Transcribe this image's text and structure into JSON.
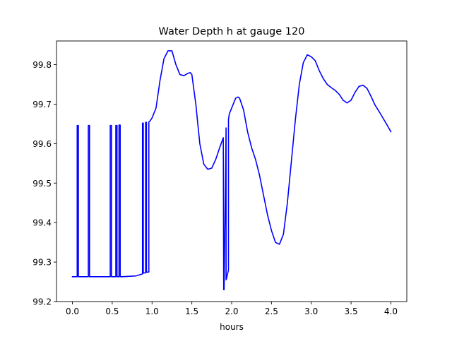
{
  "chart_data": {
    "type": "line",
    "title": "Water Depth h at gauge 120",
    "xlabel": "hours",
    "ylabel": "",
    "xlim": [
      -0.2,
      4.2
    ],
    "ylim": [
      99.2,
      99.86
    ],
    "x_ticks": [
      0.0,
      0.5,
      1.0,
      1.5,
      2.0,
      2.5,
      3.0,
      3.5,
      4.0
    ],
    "x_tick_labels": [
      "0.0",
      "0.5",
      "1.0",
      "1.5",
      "2.0",
      "2.5",
      "3.0",
      "3.5",
      "4.0"
    ],
    "y_ticks": [
      99.2,
      99.3,
      99.4,
      99.5,
      99.6,
      99.7,
      99.8
    ],
    "y_tick_labels": [
      "99.2",
      "99.3",
      "99.4",
      "99.5",
      "99.6",
      "99.7",
      "99.8"
    ],
    "grid": false,
    "legend": "none",
    "series": [
      {
        "color": "#0000ff",
        "x": [
          0.0,
          0.06,
          0.06,
          0.075,
          0.075,
          0.2,
          0.2,
          0.215,
          0.215,
          0.475,
          0.475,
          0.49,
          0.49,
          0.545,
          0.545,
          0.56,
          0.56,
          0.585,
          0.585,
          0.6,
          0.6,
          0.625,
          0.8,
          0.88,
          0.88,
          0.89,
          0.89,
          0.92,
          0.92,
          0.93,
          0.93,
          0.96,
          0.96,
          0.97,
          1.0,
          1.05,
          1.1,
          1.15,
          1.2,
          1.25,
          1.3,
          1.35,
          1.4,
          1.45,
          1.48,
          1.5,
          1.55,
          1.6,
          1.65,
          1.7,
          1.75,
          1.8,
          1.85,
          1.895,
          1.9,
          1.905,
          1.93,
          1.93,
          1.935,
          1.96,
          1.96,
          1.97,
          2.0,
          2.05,
          2.08,
          2.1,
          2.15,
          2.2,
          2.25,
          2.3,
          2.35,
          2.4,
          2.45,
          2.5,
          2.55,
          2.6,
          2.65,
          2.7,
          2.75,
          2.8,
          2.85,
          2.9,
          2.95,
          3.0,
          3.05,
          3.1,
          3.15,
          3.2,
          3.25,
          3.3,
          3.35,
          3.4,
          3.45,
          3.5,
          3.55,
          3.6,
          3.65,
          3.7,
          3.75,
          3.8,
          3.85,
          3.9,
          3.95,
          4.0
        ],
        "y": [
          99.263,
          99.263,
          99.646,
          99.646,
          99.263,
          99.263,
          99.646,
          99.646,
          99.263,
          99.263,
          99.646,
          99.646,
          99.263,
          99.263,
          99.646,
          99.646,
          99.263,
          99.263,
          99.647,
          99.647,
          99.263,
          99.263,
          99.265,
          99.27,
          99.652,
          99.652,
          99.272,
          99.273,
          99.654,
          99.654,
          99.274,
          99.275,
          99.655,
          99.656,
          99.665,
          99.69,
          99.76,
          99.815,
          99.835,
          99.835,
          99.8,
          99.775,
          99.772,
          99.778,
          99.78,
          99.775,
          99.7,
          99.6,
          99.548,
          99.535,
          99.538,
          99.56,
          99.59,
          99.615,
          99.23,
          99.23,
          99.64,
          99.255,
          99.258,
          99.28,
          99.66,
          99.675,
          99.69,
          99.715,
          99.718,
          99.715,
          99.685,
          99.63,
          99.59,
          99.56,
          99.52,
          99.47,
          99.42,
          99.38,
          99.35,
          99.345,
          99.37,
          99.45,
          99.555,
          99.66,
          99.75,
          99.805,
          99.825,
          99.82,
          99.81,
          99.785,
          99.765,
          99.75,
          99.742,
          99.735,
          99.725,
          99.71,
          99.703,
          99.71,
          99.73,
          99.745,
          99.748,
          99.74,
          99.72,
          99.698,
          99.682,
          99.665,
          99.648,
          99.63
        ]
      }
    ]
  }
}
